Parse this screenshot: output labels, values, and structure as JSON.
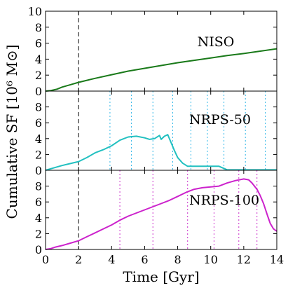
{
  "chart_data": {
    "type": "line",
    "xlabel": "Time [Gyr]",
    "ylabel": "Cumulative SF [10⁶ M⊙]",
    "xlim": [
      0,
      14
    ],
    "xticks": [
      "0",
      "2",
      "4",
      "6",
      "8",
      "10",
      "12",
      "14"
    ],
    "marker_time": 2,
    "panels": [
      {
        "name": "NISO",
        "color": "#1a7a1a",
        "ylim": [
          0,
          10
        ],
        "yticks": [
          "0",
          "2",
          "4",
          "6",
          "8",
          "10"
        ],
        "vlines": [
          2
        ],
        "vline_style": "dashed-black",
        "x": [
          0,
          0.3,
          0.7,
          1.0,
          1.5,
          2.0,
          3.0,
          4.0,
          5.0,
          6.0,
          7.0,
          8.0,
          9.0,
          10.0,
          11.0,
          12.0,
          13.0,
          14.0
        ],
        "y": [
          0.0,
          0.05,
          0.25,
          0.5,
          0.8,
          1.1,
          1.6,
          2.05,
          2.5,
          2.85,
          3.2,
          3.55,
          3.85,
          4.15,
          4.45,
          4.7,
          5.0,
          5.3
        ]
      },
      {
        "name": "NRPS-50",
        "color": "#22c0c0",
        "ylim": [
          0,
          10
        ],
        "yticks": [
          "0",
          "2",
          "4",
          "6",
          "8"
        ],
        "vlines": [
          2,
          3.9,
          5.2,
          6.5,
          7.7,
          8.8,
          9.8,
          10.8,
          12.1,
          13.3
        ],
        "vline_style": "dotted-cyan",
        "x": [
          0,
          0.5,
          1.0,
          1.5,
          2.0,
          2.5,
          3.0,
          3.5,
          4.0,
          4.5,
          5.0,
          5.5,
          6.0,
          6.3,
          6.6,
          6.9,
          7.0,
          7.2,
          7.4,
          7.6,
          7.8,
          8.0,
          8.3,
          8.6,
          9.0,
          9.5,
          10.0,
          10.5,
          11.0,
          11.5,
          12.0,
          13.0,
          14.0
        ],
        "y": [
          0.0,
          0.3,
          0.6,
          0.85,
          1.1,
          1.6,
          2.2,
          2.6,
          3.1,
          3.8,
          4.2,
          4.3,
          4.1,
          3.9,
          4.0,
          4.4,
          3.9,
          4.3,
          4.5,
          3.5,
          2.5,
          1.6,
          0.9,
          0.5,
          0.5,
          0.5,
          0.5,
          0.5,
          0.05,
          0.05,
          0.05,
          0.05,
          0.05
        ]
      },
      {
        "name": "NRPS-100",
        "color": "#cc22cc",
        "ylim": [
          0,
          10
        ],
        "yticks": [
          "0",
          "2",
          "4",
          "6",
          "8"
        ],
        "vlines": [
          2,
          4.5,
          6.5,
          8.6,
          10.2,
          11.7,
          12.8
        ],
        "vline_style": "dotted-magenta",
        "x": [
          0,
          0.3,
          0.6,
          1.0,
          1.5,
          2.0,
          2.5,
          3.0,
          3.5,
          4.0,
          4.5,
          5.0,
          5.5,
          6.0,
          6.5,
          7.0,
          7.5,
          8.0,
          8.5,
          9.0,
          9.5,
          10.0,
          10.5,
          11.0,
          11.5,
          12.0,
          12.3,
          12.5,
          12.8,
          13.0,
          13.2,
          13.4,
          13.6,
          13.8,
          14.0
        ],
        "y": [
          0.0,
          0.1,
          0.3,
          0.5,
          0.8,
          1.1,
          1.6,
          2.1,
          2.6,
          3.1,
          3.7,
          4.2,
          4.6,
          5.0,
          5.4,
          5.8,
          6.2,
          6.7,
          7.2,
          7.6,
          7.8,
          7.9,
          8.0,
          8.4,
          8.7,
          8.9,
          8.8,
          8.4,
          7.6,
          6.8,
          5.8,
          4.5,
          3.3,
          2.6,
          2.3
        ]
      }
    ]
  }
}
